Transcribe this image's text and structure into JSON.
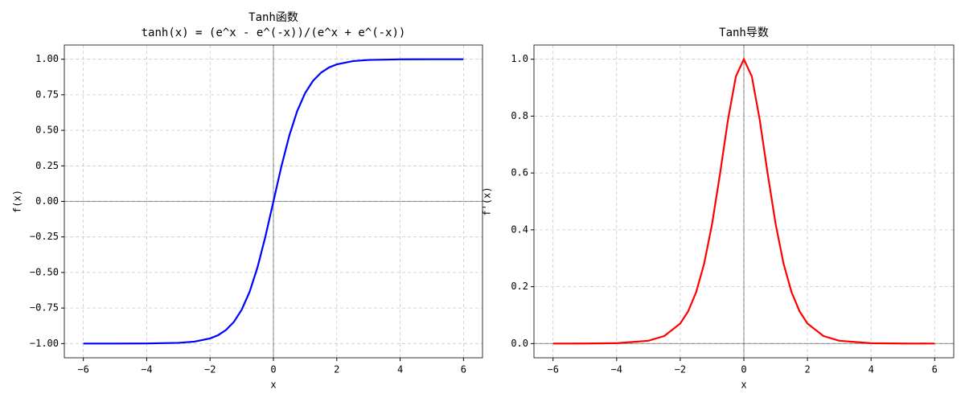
{
  "chart_data": [
    {
      "type": "line",
      "title": "Tanh函数",
      "subtitle": "tanh(x) = (e^x - e^(-x))/(e^x + e^(-x))",
      "xlabel": "x",
      "ylabel": "f(x)",
      "color": "#0000ff",
      "grid": true,
      "hline": 0,
      "vline": 0,
      "x": [
        -6,
        -5,
        -4,
        -3,
        -2.5,
        -2,
        -1.75,
        -1.5,
        -1.25,
        -1,
        -0.75,
        -0.5,
        -0.25,
        0,
        0.25,
        0.5,
        0.75,
        1,
        1.25,
        1.5,
        1.75,
        2,
        2.5,
        3,
        4,
        5,
        6
      ],
      "values": [
        -1.0,
        -0.9999,
        -0.9993,
        -0.9951,
        -0.9866,
        -0.964,
        -0.9414,
        -0.9051,
        -0.8483,
        -0.7616,
        -0.6351,
        -0.4621,
        -0.2449,
        0,
        0.2449,
        0.4621,
        0.6351,
        0.7616,
        0.8483,
        0.9051,
        0.9414,
        0.964,
        0.9866,
        0.9951,
        0.9993,
        0.9999,
        1.0
      ],
      "xlim": [
        -6.6,
        6.6
      ],
      "xticks": [
        {
          "value": -6,
          "label": "−6"
        },
        {
          "value": -4,
          "label": "−4"
        },
        {
          "value": -2,
          "label": "−2"
        },
        0,
        2,
        4,
        6
      ],
      "ylim": [
        -1.1,
        1.1
      ],
      "yticks": [
        {
          "value": -1,
          "label": "−1.00"
        },
        {
          "value": -0.75,
          "label": "−0.75"
        },
        {
          "value": -0.5,
          "label": "−0.50"
        },
        {
          "value": -0.25,
          "label": "−0.25"
        },
        {
          "value": 0,
          "label": "0.00"
        },
        0.25,
        {
          "value": 0.5,
          "label": "0.50"
        },
        0.75,
        {
          "value": 1,
          "label": "1.00"
        }
      ]
    },
    {
      "type": "line",
      "title": "Tanh导数",
      "xlabel": "x",
      "ylabel": "f'(x)",
      "color": "#ff0000",
      "grid": true,
      "hline": 0,
      "vline": 0,
      "x": [
        -6,
        -5,
        -4,
        -3,
        -2.5,
        -2,
        -1.75,
        -1.5,
        -1.25,
        -1,
        -0.75,
        -0.5,
        -0.25,
        0,
        0.25,
        0.5,
        0.75,
        1,
        1.25,
        1.5,
        1.75,
        2,
        2.5,
        3,
        4,
        5,
        6
      ],
      "values": [
        0.0,
        0.0002,
        0.0013,
        0.0099,
        0.0266,
        0.0707,
        0.1138,
        0.1807,
        0.2804,
        0.42,
        0.5966,
        0.7864,
        0.94,
        1,
        0.94,
        0.7864,
        0.5966,
        0.42,
        0.2804,
        0.1807,
        0.1138,
        0.0707,
        0.0266,
        0.0099,
        0.0013,
        0.0002,
        0.0
      ],
      "xlim": [
        -6.6,
        6.6
      ],
      "xticks": [
        {
          "value": -6,
          "label": "−6"
        },
        {
          "value": -4,
          "label": "−4"
        },
        {
          "value": -2,
          "label": "−2"
        },
        0,
        2,
        4,
        6
      ],
      "ylim": [
        -0.05,
        1.05
      ],
      "yticks": [
        {
          "value": 0,
          "label": "0.0"
        },
        0.2,
        0.4,
        0.6,
        0.8,
        {
          "value": 1,
          "label": "1.0"
        }
      ]
    }
  ]
}
